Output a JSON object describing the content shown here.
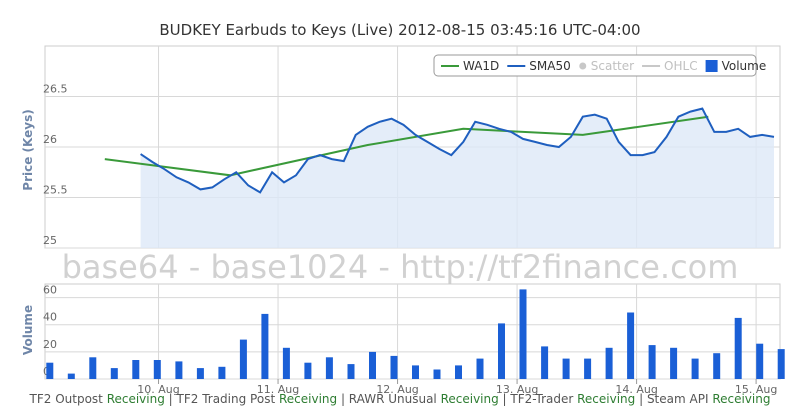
{
  "chart_data": {
    "type": "line",
    "title": "BUDKEY Earbuds to Keys (Live) 2012-08-15 03:45:16 UTC-04:00",
    "watermark": "base64 - base1024 - http://tf2finance.com",
    "legend_position": "top-right",
    "legend": [
      {
        "key": "wa1d",
        "label": "WA1D",
        "color": "#3a9a3a",
        "enabled": true,
        "style": "line"
      },
      {
        "key": "sma50",
        "label": "SMA50",
        "color": "#1f5fbf",
        "enabled": true,
        "style": "line"
      },
      {
        "key": "scatter",
        "label": "Scatter",
        "color": "#c8c8c8",
        "enabled": false,
        "style": "dot"
      },
      {
        "key": "ohlc",
        "label": "OHLC",
        "color": "#c8c8c8",
        "enabled": false,
        "style": "line"
      },
      {
        "key": "volume",
        "label": "Volume",
        "color": "#1a5fd6",
        "enabled": true,
        "style": "box"
      }
    ],
    "x_ticks": [
      {
        "x": 10,
        "label": "10. Aug"
      },
      {
        "x": 11,
        "label": "11. Aug"
      },
      {
        "x": 12,
        "label": "12. Aug"
      },
      {
        "x": 13,
        "label": "13. Aug"
      },
      {
        "x": 14,
        "label": "14. Aug"
      },
      {
        "x": 15,
        "label": "15. Aug"
      }
    ],
    "xlim": [
      9.05,
      15.2
    ],
    "price_panel": {
      "ylabel": "Price (Keys)",
      "ylim": [
        25.0,
        27.0
      ],
      "yticks": [
        25,
        25.5,
        26,
        26.5
      ],
      "ytick_labels": [
        "25",
        "25.5",
        "26",
        "26.5"
      ],
      "grid": true
    },
    "volume_panel": {
      "ylabel": "Volume",
      "ylim": [
        0,
        70
      ],
      "yticks": [
        0,
        20,
        40,
        60
      ],
      "ytick_labels": [
        "0",
        "20",
        "40",
        "60"
      ],
      "grid": true
    },
    "series": [
      {
        "name": "WA1D",
        "x": [
          9.55,
          10.6,
          11.75,
          12.55,
          13.55,
          14.6
        ],
        "values": [
          25.88,
          25.72,
          26.02,
          26.18,
          26.12,
          26.3
        ]
      },
      {
        "name": "SMA50",
        "x": [
          9.85,
          9.95,
          10.05,
          10.15,
          10.25,
          10.35,
          10.45,
          10.55,
          10.65,
          10.75,
          10.85,
          10.95,
          11.05,
          11.15,
          11.25,
          11.35,
          11.45,
          11.55,
          11.65,
          11.75,
          11.85,
          11.95,
          12.05,
          12.15,
          12.25,
          12.35,
          12.45,
          12.55,
          12.65,
          12.75,
          12.85,
          12.95,
          13.05,
          13.15,
          13.25,
          13.35,
          13.45,
          13.55,
          13.65,
          13.75,
          13.85,
          13.95,
          14.05,
          14.15,
          14.25,
          14.35,
          14.45,
          14.55,
          14.65,
          14.75,
          14.85,
          14.95,
          15.05,
          15.15
        ],
        "values": [
          25.93,
          25.85,
          25.78,
          25.7,
          25.65,
          25.58,
          25.6,
          25.68,
          25.75,
          25.62,
          25.55,
          25.75,
          25.65,
          25.72,
          25.88,
          25.92,
          25.88,
          25.86,
          26.12,
          26.2,
          26.25,
          26.28,
          26.22,
          26.12,
          26.05,
          25.98,
          25.92,
          26.05,
          26.25,
          26.22,
          26.18,
          26.15,
          26.08,
          26.05,
          26.02,
          26.0,
          26.1,
          26.3,
          26.32,
          26.28,
          26.05,
          25.92,
          25.92,
          25.95,
          26.1,
          26.3,
          26.35,
          26.38,
          26.15,
          26.15,
          26.18,
          26.1,
          26.12,
          26.1
        ]
      },
      {
        "name": "Volume",
        "x": [
          9.09,
          9.27,
          9.45,
          9.63,
          9.81,
          9.99,
          10.17,
          10.35,
          10.53,
          10.71,
          10.89,
          11.07,
          11.25,
          11.43,
          11.61,
          11.79,
          11.97,
          12.15,
          12.33,
          12.51,
          12.69,
          12.87,
          13.05,
          13.23,
          13.41,
          13.59,
          13.77,
          13.95,
          14.13,
          14.31,
          14.49,
          14.67,
          14.85,
          15.03,
          15.21
        ],
        "values": [
          12,
          4,
          16,
          8,
          14,
          14,
          13,
          8,
          9,
          29,
          48,
          23,
          12,
          16,
          11,
          20,
          17,
          10,
          7,
          10,
          15,
          41,
          66,
          24,
          15,
          15,
          23,
          49,
          25,
          23,
          15,
          19,
          45,
          26,
          22
        ]
      }
    ]
  },
  "footer": {
    "feeds": [
      {
        "name": "TF2 Outpost",
        "status": "Receiving"
      },
      {
        "name": "TF2 Trading Post",
        "status": "Receiving"
      },
      {
        "name": "RAWR Unusual",
        "status": "Receiving"
      },
      {
        "name": "TF2-Trader",
        "status": "Receiving"
      },
      {
        "name": "Steam API",
        "status": "Receiving"
      }
    ]
  }
}
